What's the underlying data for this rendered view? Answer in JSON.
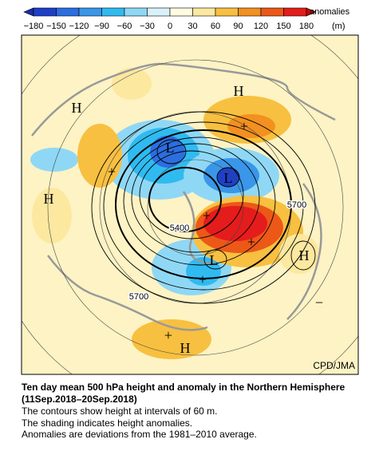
{
  "colorbar": {
    "ticks": [
      "−180",
      "−150",
      "−120",
      "−90",
      "−60",
      "−30",
      "0",
      "30",
      "60",
      "90",
      "120",
      "150",
      "180"
    ],
    "title": "anomalies",
    "unit": "(m)"
  },
  "map": {
    "labels": [
      "H",
      "H",
      "H",
      "H",
      "H",
      "L",
      "L",
      "L",
      "5700",
      "5400",
      "5700",
      "+",
      "+",
      "+",
      "+",
      "+",
      "+",
      "−"
    ],
    "credit": "CPD/JMA"
  },
  "caption": {
    "title": "Ten day mean 500 hPa height and anomaly in the Northern Hemisphere (11Sep.2018–20Sep.2018)",
    "lines": [
      "The contours show height at intervals of 60 m.",
      "The shading indicates height anomalies.",
      "Anomalies are deviations from the 1981–2010 average."
    ]
  }
}
